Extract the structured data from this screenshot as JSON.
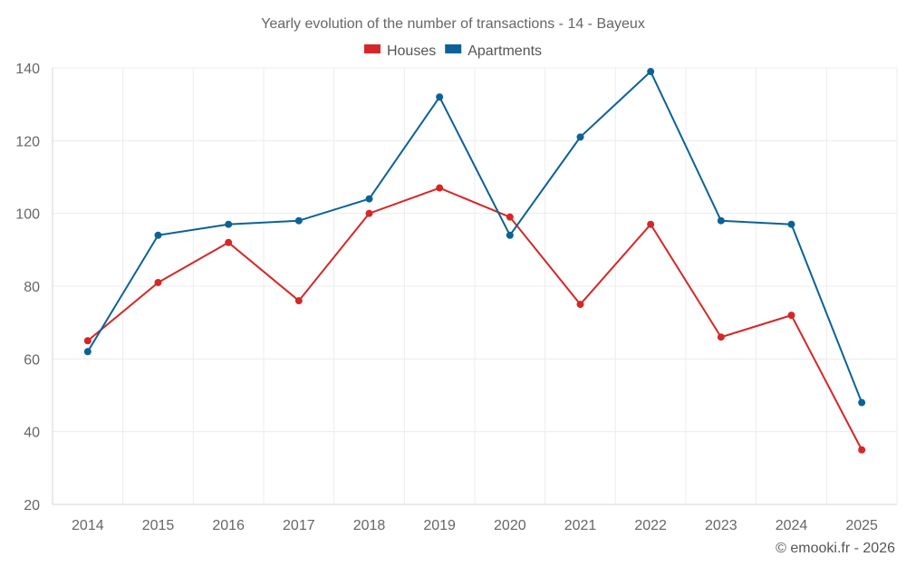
{
  "chart_data": {
    "type": "line",
    "title": "Yearly evolution of the number of transactions - 14 - Bayeux",
    "categories": [
      "2014",
      "2015",
      "2016",
      "2017",
      "2018",
      "2019",
      "2020",
      "2021",
      "2022",
      "2023",
      "2024",
      "2025"
    ],
    "series": [
      {
        "name": "Houses",
        "color": "#d62728",
        "values": [
          65,
          81,
          92,
          76,
          100,
          107,
          99,
          75,
          97,
          66,
          72,
          35
        ]
      },
      {
        "name": "Apartments",
        "color": "#0b6298",
        "values": [
          62,
          94,
          97,
          98,
          104,
          132,
          94,
          121,
          139,
          98,
          97,
          48
        ]
      }
    ],
    "ylim": [
      20,
      140
    ],
    "yticks": [
      20,
      40,
      60,
      80,
      100,
      120,
      140
    ],
    "legend_position": "top-center",
    "grid": true
  },
  "credit": "© emooki.fr - 2026"
}
